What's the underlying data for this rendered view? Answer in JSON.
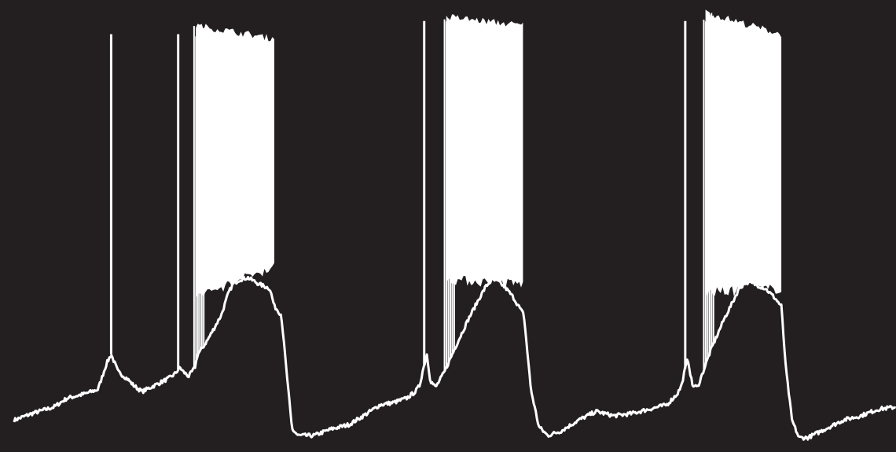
{
  "colors": {
    "background": "#231f20",
    "trace": "#ffffff"
  },
  "chart_data": {
    "type": "line",
    "title": "",
    "xlabel": "",
    "ylabel": "",
    "xlim": [
      0,
      1000
    ],
    "ylim": [
      0,
      100
    ],
    "grid": false,
    "legend": "none",
    "axes_visible": false,
    "series": [
      {
        "kind": "membrane-potential-trace",
        "color": "#ffffff",
        "baseline": [
          [
            0,
            6
          ],
          [
            20,
            7.5
          ],
          [
            45,
            9
          ],
          [
            60,
            11
          ],
          [
            80,
            12
          ],
          [
            95,
            13
          ],
          [
            105,
            19
          ],
          [
            110,
            21
          ],
          [
            118,
            17
          ],
          [
            128,
            15.5
          ],
          [
            135,
            14
          ],
          [
            145,
            12.5
          ],
          [
            160,
            14
          ],
          [
            175,
            15.5
          ],
          [
            182,
            16.5
          ],
          [
            188,
            18
          ],
          [
            192,
            17
          ],
          [
            198,
            16
          ],
          [
            205,
            18
          ],
          [
            208,
            21
          ],
          [
            212,
            22
          ],
          [
            220,
            24.5
          ],
          [
            235,
            30
          ],
          [
            243,
            35
          ],
          [
            248,
            37
          ],
          [
            255,
            38
          ],
          [
            265,
            38.5
          ],
          [
            278,
            37
          ],
          [
            290,
            36
          ],
          [
            295,
            32
          ],
          [
            303,
            30
          ],
          [
            308,
            19
          ],
          [
            315,
            4
          ],
          [
            322,
            2.5
          ],
          [
            340,
            2.5
          ],
          [
            360,
            4
          ],
          [
            380,
            5
          ],
          [
            400,
            7.5
          ],
          [
            415,
            9.5
          ],
          [
            430,
            10
          ],
          [
            445,
            11
          ],
          [
            455,
            12.5
          ],
          [
            460,
            14
          ],
          [
            463,
            17
          ],
          [
            468,
            21
          ],
          [
            472,
            15
          ],
          [
            478,
            13.5
          ],
          [
            488,
            17
          ],
          [
            500,
            22.5
          ],
          [
            515,
            29
          ],
          [
            528,
            34
          ],
          [
            535,
            36.5
          ],
          [
            542,
            38
          ],
          [
            550,
            37.5
          ],
          [
            558,
            36
          ],
          [
            566,
            34
          ],
          [
            572,
            32
          ],
          [
            578,
            30
          ],
          [
            586,
            13
          ],
          [
            595,
            4.5
          ],
          [
            605,
            2.5
          ],
          [
            620,
            3.5
          ],
          [
            640,
            6
          ],
          [
            660,
            8
          ],
          [
            680,
            7
          ],
          [
            700,
            7.5
          ],
          [
            720,
            8.5
          ],
          [
            740,
            9.5
          ],
          [
            752,
            12
          ],
          [
            757,
            14
          ],
          [
            760,
            17
          ],
          [
            764,
            20
          ],
          [
            769,
            14
          ],
          [
            775,
            13.5
          ],
          [
            790,
            22
          ],
          [
            805,
            29
          ],
          [
            815,
            33
          ],
          [
            822,
            36
          ],
          [
            830,
            37.5
          ],
          [
            840,
            37
          ],
          [
            852,
            36
          ],
          [
            862,
            34
          ],
          [
            870,
            32
          ],
          [
            875,
            18
          ],
          [
            882,
            6
          ],
          [
            890,
            2
          ],
          [
            900,
            2
          ],
          [
            920,
            4
          ],
          [
            940,
            6
          ],
          [
            960,
            7
          ],
          [
            980,
            8.5
          ],
          [
            1000,
            9
          ]
        ],
        "spikes": [
          {
            "t": 110,
            "peak": 94
          },
          {
            "t": 186,
            "peak": 94
          },
          {
            "t": 465,
            "peak": 97
          },
          {
            "t": 761,
            "peak": 97
          }
        ],
        "bursts": [
          {
            "t_start": 206,
            "t_end": 295,
            "peak_start": 96,
            "peak_end": 93,
            "trough_start": 34,
            "trough_end": 41
          },
          {
            "t_start": 490,
            "t_end": 577,
            "peak_start": 98,
            "peak_end": 96,
            "trough_start": 38,
            "trough_end": 37
          },
          {
            "t_start": 784,
            "t_end": 870,
            "peak_start": 99,
            "peak_end": 94,
            "trough_start": 35,
            "trough_end": 36
          }
        ]
      }
    ]
  }
}
